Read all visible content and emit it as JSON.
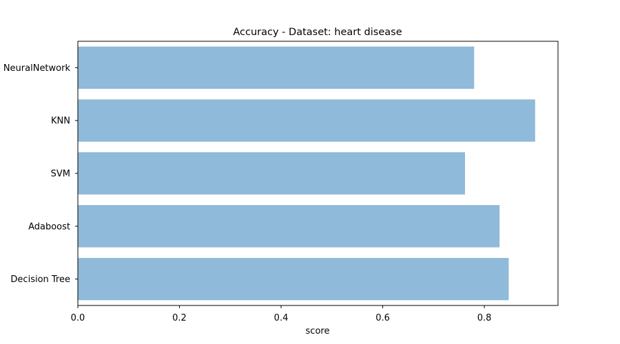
{
  "chart_data": {
    "type": "bar",
    "orientation": "horizontal",
    "title": "Accuracy - Dataset: heart disease",
    "xlabel": "score",
    "ylabel": "",
    "categories": [
      "NeuralNetwork",
      "KNN",
      "SVM",
      "Adaboost",
      "Decision Tree"
    ],
    "values": [
      0.78,
      0.9,
      0.762,
      0.83,
      0.848
    ],
    "xlim": [
      0,
      0.945
    ],
    "xticks": [
      "0.0",
      "0.2",
      "0.4",
      "0.6",
      "0.8"
    ],
    "xtick_values": [
      0.0,
      0.2,
      0.4,
      0.6,
      0.8
    ],
    "grid": false,
    "legend": "none",
    "bar_color": "#8fbad9"
  }
}
